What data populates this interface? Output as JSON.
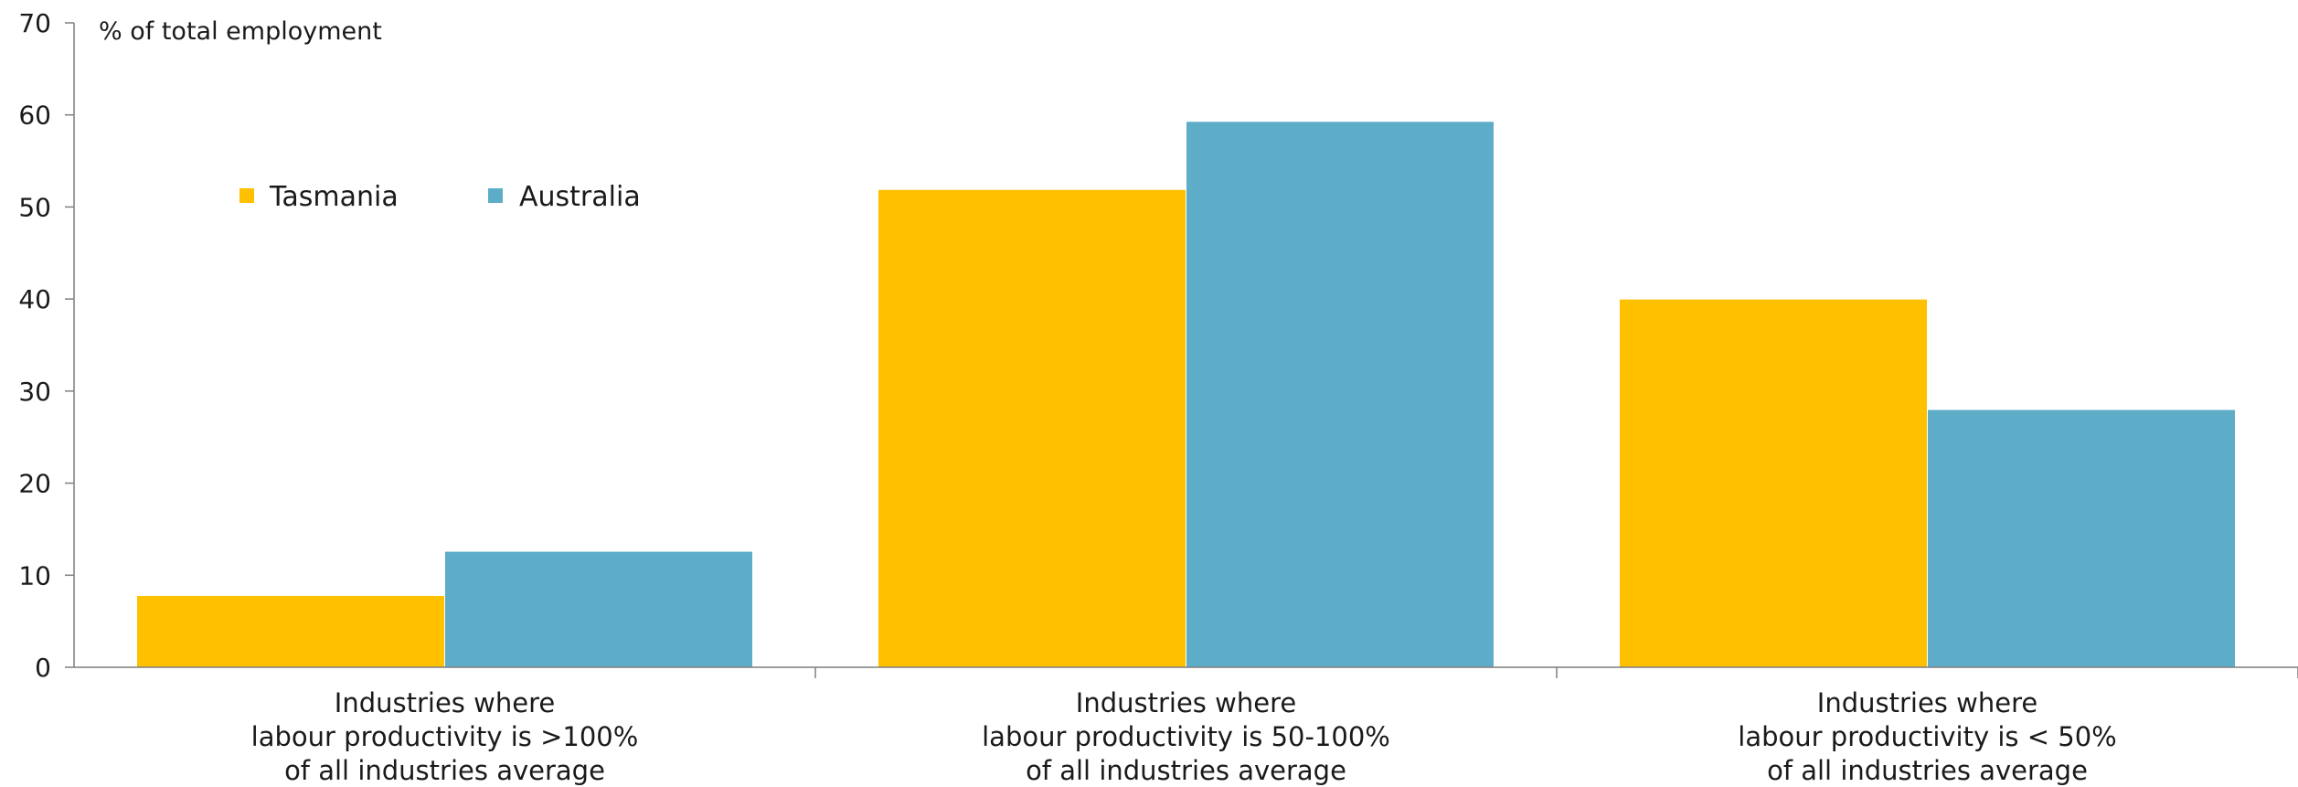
{
  "chart_data": {
    "type": "bar",
    "title": "",
    "ylabel": "% of total employment",
    "xlabel": "",
    "ylim": [
      0,
      70
    ],
    "yticks": [
      0,
      10,
      20,
      30,
      40,
      50,
      60,
      70
    ],
    "grid": false,
    "legend_position": "top-left",
    "categories": [
      [
        "Industries where",
        "labour productivity is >100%",
        "of all industries average"
      ],
      [
        "Industries where",
        "labour productivity is 50-100%",
        "of all industries average"
      ],
      [
        "Industries where",
        "labour productivity is < 50%",
        "of all industries average"
      ]
    ],
    "series": [
      {
        "name": "Tasmania",
        "color": "#FFC000",
        "values": [
          7.8,
          51.9,
          40.0
        ]
      },
      {
        "name": "Australia",
        "color": "#5DADC9",
        "values": [
          12.6,
          59.3,
          28.0
        ]
      }
    ]
  }
}
